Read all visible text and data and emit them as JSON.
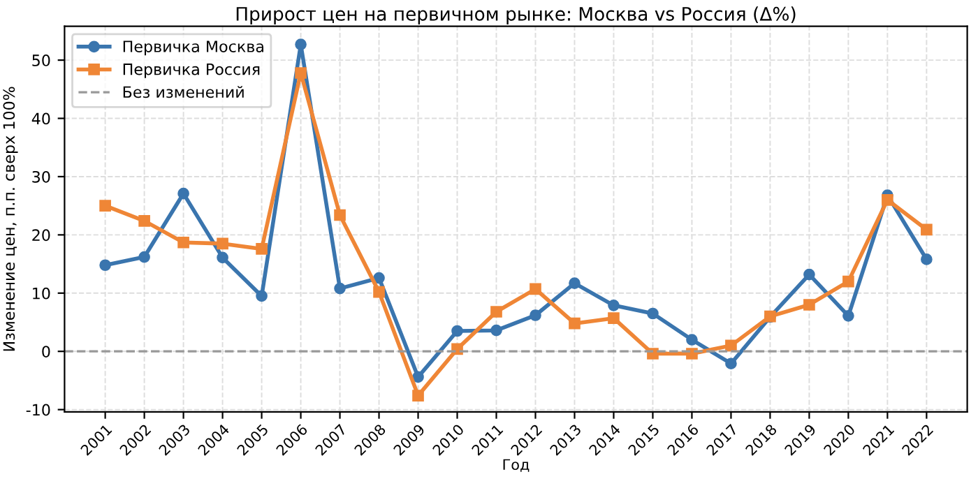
{
  "chart_data": {
    "type": "line",
    "title": "Прирост цен на первичном рынке: Москва vs Россия (Δ%)",
    "xlabel": "Год",
    "ylabel": "Изменение цен, п.п. сверх 100%",
    "categories": [
      "2001",
      "2002",
      "2003",
      "2004",
      "2005",
      "2006",
      "2007",
      "2008",
      "2009",
      "2010",
      "2011",
      "2012",
      "2013",
      "2014",
      "2015",
      "2016",
      "2017",
      "2018",
      "2019",
      "2020",
      "2021",
      "2022"
    ],
    "series": [
      {
        "name": "Первичка Москва",
        "color": "#3a75ae",
        "marker": "circle",
        "values": [
          14.8,
          16.2,
          27.1,
          16.1,
          9.5,
          52.7,
          10.8,
          12.6,
          -4.4,
          3.5,
          3.6,
          6.2,
          11.7,
          7.9,
          6.5,
          2.0,
          -2.1,
          5.9,
          13.2,
          6.1,
          26.8,
          15.8
        ]
      },
      {
        "name": "Первичка Россия",
        "color": "#ef8636",
        "marker": "square",
        "values": [
          25.0,
          22.4,
          18.7,
          18.5,
          17.6,
          47.8,
          23.4,
          10.2,
          -7.6,
          0.4,
          6.8,
          10.7,
          4.8,
          5.7,
          -0.4,
          -0.4,
          1.0,
          6.0,
          8.0,
          12.0,
          26.0,
          20.9
        ]
      }
    ],
    "ylim": [
      -10.4,
      55.8
    ],
    "yticks": [
      -10,
      0,
      10,
      20,
      30,
      40,
      50
    ],
    "ref_lines": [
      {
        "axis": "y",
        "value": 0,
        "label": "Без изменений",
        "color": "#999999",
        "line_style": "dashed"
      }
    ],
    "grid": true,
    "legend": "top left",
    "line_style": "solid"
  }
}
